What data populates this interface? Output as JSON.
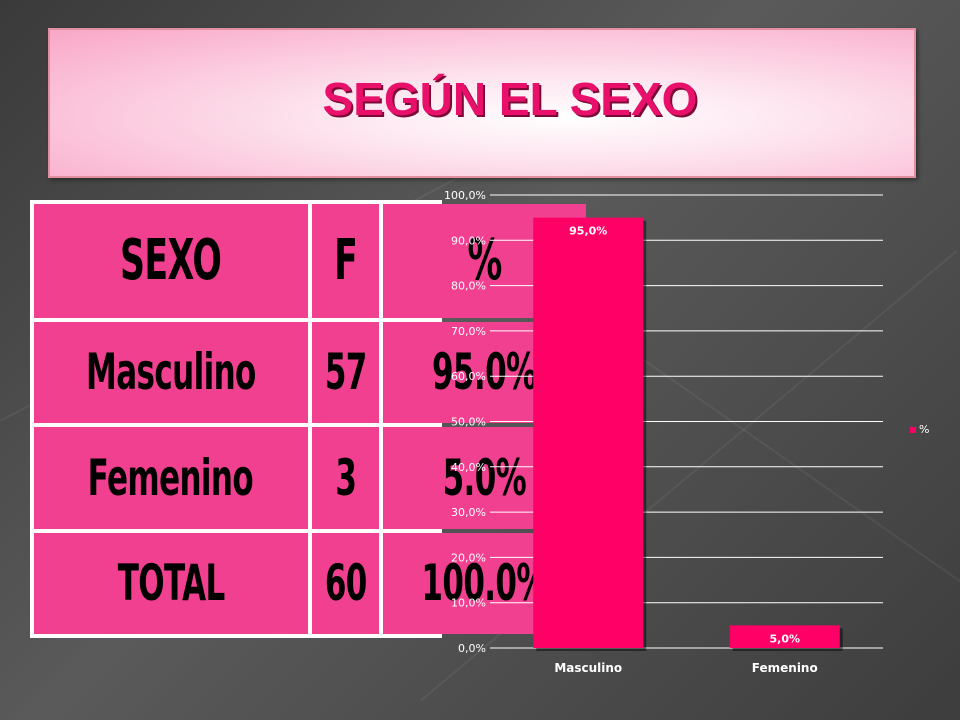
{
  "slide_title": "SEGÚN EL SEXO",
  "table": {
    "header": [
      "SEXO",
      "F",
      "%"
    ],
    "rows": [
      [
        "Masculino",
        "57",
        "95.0%"
      ],
      [
        "Femenino",
        "3",
        "5.0%"
      ],
      [
        "TOTAL",
        "60",
        "100.0%"
      ]
    ]
  },
  "chart_data": {
    "type": "bar",
    "categories": [
      "Masculino",
      "Femenino"
    ],
    "series": [
      {
        "name": "%",
        "values": [
          95.0,
          5.0
        ]
      }
    ],
    "data_labels": [
      "95,0%",
      "5,0%"
    ],
    "yticks": [
      "0,0%",
      "10,0%",
      "20,0%",
      "30,0%",
      "40,0%",
      "50,0%",
      "60,0%",
      "70,0%",
      "80,0%",
      "90,0%",
      "100,0%"
    ],
    "ylim": [
      0,
      100
    ],
    "grid": true,
    "legend": "right",
    "bar_color": "#ff0066"
  }
}
